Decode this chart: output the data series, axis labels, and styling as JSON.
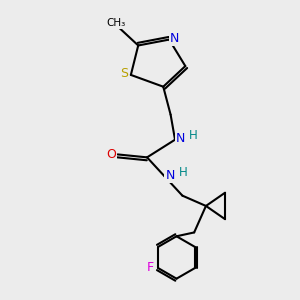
{
  "background_color": "#ececec",
  "bond_color": "#000000",
  "atom_colors": {
    "S": "#b8a000",
    "N_ring": "#0000dd",
    "N_urea": "#0000dd",
    "H": "#008888",
    "O": "#dd0000",
    "F": "#dd00dd",
    "C": "#000000"
  },
  "figsize": [
    3.0,
    3.0
  ],
  "dpi": 100,
  "xlim": [
    0,
    10
  ],
  "ylim": [
    0,
    10
  ]
}
